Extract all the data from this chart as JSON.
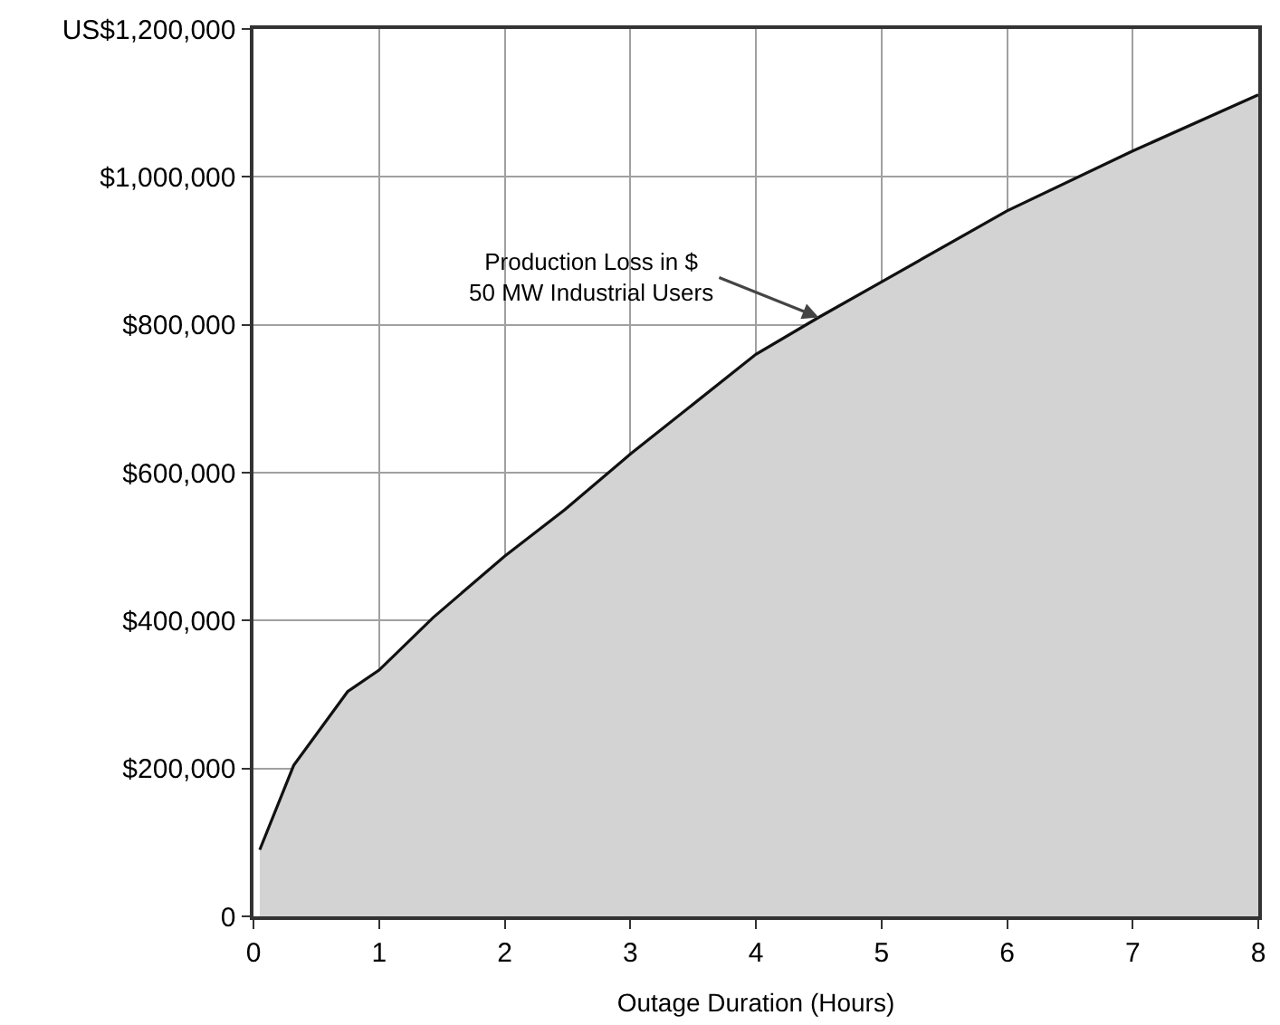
{
  "chart_data": {
    "type": "area",
    "xlabel": "Outage Duration (Hours)",
    "series": [
      {
        "color": "#d3d3d3",
        "x": [
          0.05,
          0.32,
          0.75,
          1,
          1.43,
          2,
          2.48,
          3,
          4,
          4.5,
          5,
          6,
          7,
          8
        ],
        "values": [
          90000,
          204000,
          304000,
          333000,
          404000,
          487000,
          550000,
          625000,
          760000,
          810000,
          858000,
          954000,
          1035000,
          1111000
        ]
      }
    ],
    "annotations": [
      {
        "text": "Production Loss in $\n50 MW Industrial Users",
        "x": 4.5,
        "y": 810000
      }
    ],
    "xlim": [
      0,
      8
    ],
    "xticks": [
      0,
      1,
      2,
      3,
      4,
      5,
      6,
      7,
      8
    ],
    "ylim": [
      0,
      1200000
    ],
    "yticks": [
      {
        "value": 0,
        "label": "0"
      },
      {
        "value": 200000,
        "label": "$200,000"
      },
      {
        "value": 400000,
        "label": "$400,000"
      },
      {
        "value": 600000,
        "label": "$600,000"
      },
      {
        "value": 800000,
        "label": "$800,000"
      },
      {
        "value": 1000000,
        "label": "$1,000,000"
      },
      {
        "value": 1200000,
        "label": "US$1,200,000"
      }
    ],
    "grid": true,
    "marker": "none",
    "line_style": "solid"
  }
}
